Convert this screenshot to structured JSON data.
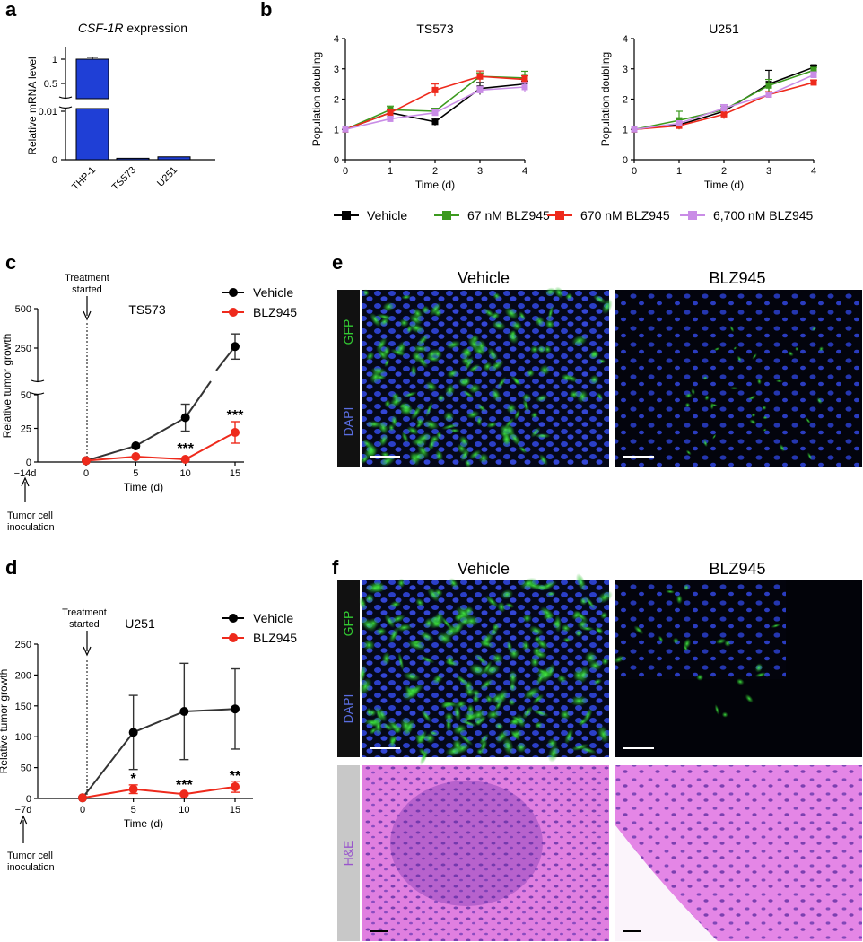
{
  "panels": {
    "a": "a",
    "b": "b",
    "c": "c",
    "d": "d",
    "e": "e",
    "f": "f"
  },
  "colors": {
    "vehicle": "#000000",
    "bzl67": "#3c9a1e",
    "bzl670": "#ee2a1c",
    "bzl6700": "#c98ce6",
    "bar": "#1f3fd6",
    "redTreat": "#ee2a1c",
    "gfp": "#33cc33",
    "dapi": "#5a6ee0",
    "he": "#9955cc"
  },
  "panel_a": {
    "title_gene": "CSF-1R",
    "title_rest": " expression",
    "ylabel": "Relative mRNA level",
    "yticks": [
      "1",
      "0.5",
      "0.01",
      "0"
    ]
  },
  "panel_b": {
    "xlabel": "Time (d)",
    "ylabel": "Population doubling",
    "legend": [
      "Vehicle",
      "67 nM BLZ945",
      "670 nM BLZ945",
      "6,700 nM BLZ945"
    ]
  },
  "panel_c": {
    "annot_treat": "Treatment\nstarted",
    "annot_inoc": "Tumor cell\ninoculation",
    "day_label": "−14d",
    "xlabel": "Time (d)",
    "ylabel": "Relative tumor growth",
    "yticks": [
      "500",
      "250",
      "50",
      "25",
      "0"
    ],
    "legend": [
      "Vehicle",
      "BLZ945"
    ]
  },
  "panel_d": {
    "annot_treat": "Treatment\nstarted",
    "annot_inoc": "Tumor cell\ninoculation",
    "day_label": "−7d",
    "xlabel": "Time (d)",
    "ylabel": "Relative tumor growth",
    "legend": [
      "Vehicle",
      "BLZ945"
    ]
  },
  "panel_e": {
    "col1": "Vehicle",
    "col2": "BLZ945",
    "stain1": "GFP",
    "stain2": "DAPI"
  },
  "panel_f": {
    "col1": "Vehicle",
    "col2": "BLZ945",
    "stain1": "GFP",
    "stain2": "DAPI",
    "stain3": "H&E"
  },
  "chart_data": [
    {
      "id": "a",
      "type": "bar",
      "title": "CSF-1R expression",
      "ylabel": "Relative mRNA level",
      "categories": [
        "THP-1",
        "TS573",
        "U251"
      ],
      "values": [
        1.0,
        0.0003,
        0.0006
      ],
      "errors": [
        0.04,
        0.0001,
        0.0003
      ],
      "axis_break": [
        0.01,
        0.5
      ],
      "yticks": [
        0,
        0.01,
        0.5,
        1
      ]
    },
    {
      "id": "b1",
      "type": "line",
      "title": "TS573",
      "xlabel": "Time (d)",
      "ylabel": "Population doubling",
      "x": [
        0,
        1,
        2,
        3,
        4
      ],
      "xlim": [
        0,
        4
      ],
      "ylim": [
        0,
        4
      ],
      "series": [
        {
          "name": "Vehicle",
          "values": [
            1.0,
            1.55,
            1.25,
            2.35,
            2.5
          ],
          "errors": [
            0,
            0.1,
            0.12,
            0.2,
            0.1
          ]
        },
        {
          "name": "67 nM BLZ945",
          "values": [
            1.0,
            1.65,
            1.6,
            2.75,
            2.7
          ],
          "errors": [
            0,
            0.12,
            0.1,
            0.12,
            0.22
          ]
        },
        {
          "name": "670 nM BLZ945",
          "values": [
            1.0,
            1.55,
            2.3,
            2.75,
            2.65
          ],
          "errors": [
            0,
            0.1,
            0.2,
            0.18,
            0.12
          ]
        },
        {
          "name": "6,700 nM BLZ945",
          "values": [
            1.0,
            1.35,
            1.55,
            2.3,
            2.4
          ],
          "errors": [
            0,
            0.08,
            0.1,
            0.12,
            0.15
          ]
        }
      ]
    },
    {
      "id": "b2",
      "type": "line",
      "title": "U251",
      "xlabel": "Time (d)",
      "ylabel": "Population doubling",
      "x": [
        0,
        1,
        2,
        3,
        4
      ],
      "xlim": [
        0,
        4
      ],
      "ylim": [
        0,
        4
      ],
      "series": [
        {
          "name": "Vehicle",
          "values": [
            1.0,
            1.15,
            1.6,
            2.5,
            3.05
          ],
          "errors": [
            0,
            0.1,
            0.08,
            0.45,
            0.05
          ]
        },
        {
          "name": "67 nM BLZ945",
          "values": [
            1.0,
            1.3,
            1.65,
            2.45,
            2.95
          ],
          "errors": [
            0,
            0.3,
            0.12,
            0.2,
            0.1
          ]
        },
        {
          "name": "670 nM BLZ945",
          "values": [
            1.0,
            1.12,
            1.5,
            2.15,
            2.55
          ],
          "errors": [
            0,
            0.08,
            0.15,
            0.1,
            0.08
          ]
        },
        {
          "name": "6,700 nM BLZ945",
          "values": [
            1.0,
            1.2,
            1.7,
            2.15,
            2.8
          ],
          "errors": [
            0,
            0.06,
            0.12,
            0.08,
            0.1
          ]
        }
      ]
    },
    {
      "id": "c",
      "type": "line",
      "title": "TS573",
      "xlabel": "Time (d)",
      "ylabel": "Relative tumor growth",
      "x": [
        0,
        5,
        10,
        15
      ],
      "xticks": [
        0,
        5,
        10,
        15
      ],
      "axis_break": [
        50,
        250
      ],
      "yticks": [
        0,
        25,
        50,
        250,
        500
      ],
      "series": [
        {
          "name": "Vehicle",
          "values": [
            1,
            12,
            33,
            260
          ],
          "errors": [
            0,
            0.5,
            10,
            80
          ]
        },
        {
          "name": "BLZ945",
          "values": [
            1,
            4,
            2,
            22
          ],
          "errors": [
            0,
            0.5,
            0.5,
            8
          ]
        }
      ],
      "significance": [
        {
          "x": 10,
          "label": "***"
        },
        {
          "x": 15,
          "label": "***"
        }
      ]
    },
    {
      "id": "d",
      "type": "line",
      "title": "U251",
      "xlabel": "Time (d)",
      "ylabel": "Relative tumor growth",
      "x": [
        0,
        5,
        10,
        15
      ],
      "xticks": [
        0,
        5,
        10,
        15
      ],
      "ylim": [
        0,
        250
      ],
      "yticks": [
        0,
        50,
        100,
        150,
        200,
        250
      ],
      "series": [
        {
          "name": "Vehicle",
          "values": [
            1,
            107,
            141,
            145
          ],
          "errors": [
            0,
            60,
            78,
            65
          ]
        },
        {
          "name": "BLZ945",
          "values": [
            1,
            15,
            7,
            19
          ],
          "errors": [
            0,
            7,
            2,
            9
          ]
        }
      ],
      "significance": [
        {
          "x": 5,
          "label": "*"
        },
        {
          "x": 10,
          "label": "***"
        },
        {
          "x": 15,
          "label": "**"
        }
      ]
    }
  ]
}
